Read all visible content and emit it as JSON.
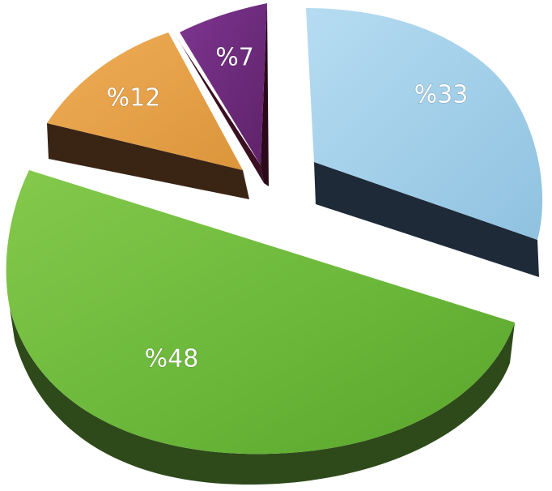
{
  "chart_data": {
    "type": "pie",
    "title": "",
    "exploded": true,
    "style": "3d",
    "slices": [
      {
        "label": "%33",
        "value": 33,
        "color": "#a3cfe9"
      },
      {
        "label": "%48",
        "value": 48,
        "color": "#72bd3e"
      },
      {
        "label": "%12",
        "value": 12,
        "color": "#e9a34a"
      },
      {
        "label": "%7",
        "value": 7,
        "color": "#6d2a7a"
      }
    ]
  }
}
